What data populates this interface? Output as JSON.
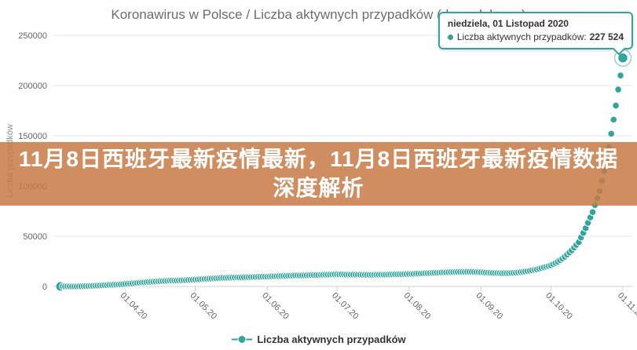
{
  "title": "Koronawirus w Polsce / Liczba aktywnych przypadków (dane dobowe)",
  "overlay_banner": {
    "text": "11月8日西班牙最新疫情最新，11月8日西班牙最新疫情数据深度解析",
    "bg_color": "rgba(200,122,68,0.85)",
    "text_color": "#ffffff"
  },
  "tooltip": {
    "header": "niedziela, 01 Listopad 2020",
    "series_label": "Liczba aktywnych przypadków:",
    "value": "227 524",
    "border_color": "#2fa59b"
  },
  "legend": {
    "label": "Liczba aktywnych przypadków"
  },
  "chart_data": {
    "type": "line",
    "title": "Koronawirus w Polsce / Liczba aktywnych przypadków (dane dobowe)",
    "xlabel": "",
    "ylabel": "Liczba przypadków",
    "series_name": "Liczba aktywnych przypadków",
    "color": "#2fa59b",
    "ylim": [
      0,
      250000
    ],
    "y_ticks": [
      0,
      50000,
      100000,
      150000,
      200000,
      250000
    ],
    "x_range": [
      "2020-03-04",
      "2020-11-01"
    ],
    "x_ticks": [
      {
        "label": "01.04.20",
        "date": "2020-04-01"
      },
      {
        "label": "01.05.20",
        "date": "2020-05-01"
      },
      {
        "label": "01.06.20",
        "date": "2020-06-01"
      },
      {
        "label": "01.07.20",
        "date": "2020-07-01"
      },
      {
        "label": "01.08.20",
        "date": "2020-08-01"
      },
      {
        "label": "01.09.20",
        "date": "2020-09-01"
      },
      {
        "label": "01.10.20",
        "date": "2020-10-01"
      },
      {
        "label": "01.11.20",
        "date": "2020-11-01"
      }
    ],
    "grid": "horizontal",
    "legend_position": "bottom",
    "points": [
      {
        "date": "2020-03-04",
        "value": 1
      },
      {
        "date": "2020-03-08",
        "value": 30
      },
      {
        "date": "2020-03-12",
        "value": 120
      },
      {
        "date": "2020-03-16",
        "value": 400
      },
      {
        "date": "2020-03-20",
        "value": 850
      },
      {
        "date": "2020-03-24",
        "value": 1350
      },
      {
        "date": "2020-03-28",
        "value": 1800
      },
      {
        "date": "2020-04-01",
        "value": 2400
      },
      {
        "date": "2020-04-05",
        "value": 3300
      },
      {
        "date": "2020-04-10",
        "value": 4300
      },
      {
        "date": "2020-04-15",
        "value": 5100
      },
      {
        "date": "2020-04-20",
        "value": 5700
      },
      {
        "date": "2020-04-25",
        "value": 6100
      },
      {
        "date": "2020-05-01",
        "value": 6800
      },
      {
        "date": "2020-05-06",
        "value": 7600
      },
      {
        "date": "2020-05-12",
        "value": 8400
      },
      {
        "date": "2020-05-18",
        "value": 8900
      },
      {
        "date": "2020-05-24",
        "value": 9200
      },
      {
        "date": "2020-06-01",
        "value": 9800
      },
      {
        "date": "2020-06-07",
        "value": 10400
      },
      {
        "date": "2020-06-14",
        "value": 10900
      },
      {
        "date": "2020-06-21",
        "value": 11300
      },
      {
        "date": "2020-07-01",
        "value": 12000
      },
      {
        "date": "2020-07-08",
        "value": 11700
      },
      {
        "date": "2020-07-15",
        "value": 11500
      },
      {
        "date": "2020-07-22",
        "value": 11800
      },
      {
        "date": "2020-08-01",
        "value": 12400
      },
      {
        "date": "2020-08-08",
        "value": 13100
      },
      {
        "date": "2020-08-15",
        "value": 13900
      },
      {
        "date": "2020-08-22",
        "value": 14500
      },
      {
        "date": "2020-08-27",
        "value": 14600
      },
      {
        "date": "2020-09-01",
        "value": 14100
      },
      {
        "date": "2020-09-05",
        "value": 13500
      },
      {
        "date": "2020-09-10",
        "value": 13100
      },
      {
        "date": "2020-09-15",
        "value": 13500
      },
      {
        "date": "2020-09-20",
        "value": 14800
      },
      {
        "date": "2020-09-25",
        "value": 17000
      },
      {
        "date": "2020-10-01",
        "value": 21000
      },
      {
        "date": "2020-10-04",
        "value": 24500
      },
      {
        "date": "2020-10-07",
        "value": 29500
      },
      {
        "date": "2020-10-10",
        "value": 36000
      },
      {
        "date": "2020-10-13",
        "value": 44000
      },
      {
        "date": "2020-10-16",
        "value": 58000
      },
      {
        "date": "2020-10-19",
        "value": 74000
      },
      {
        "date": "2020-10-22",
        "value": 95000
      },
      {
        "date": "2020-10-25",
        "value": 125000
      },
      {
        "date": "2020-10-27",
        "value": 152000
      },
      {
        "date": "2020-10-29",
        "value": 180000
      },
      {
        "date": "2020-10-30",
        "value": 196000
      },
      {
        "date": "2020-10-31",
        "value": 210000
      },
      {
        "date": "2020-11-01",
        "value": 227524
      }
    ],
    "highlight": {
      "date": "2020-11-01",
      "value": 227524,
      "display": "227 524",
      "weekday_label": "niedziela, 01 Listopad 2020"
    }
  }
}
